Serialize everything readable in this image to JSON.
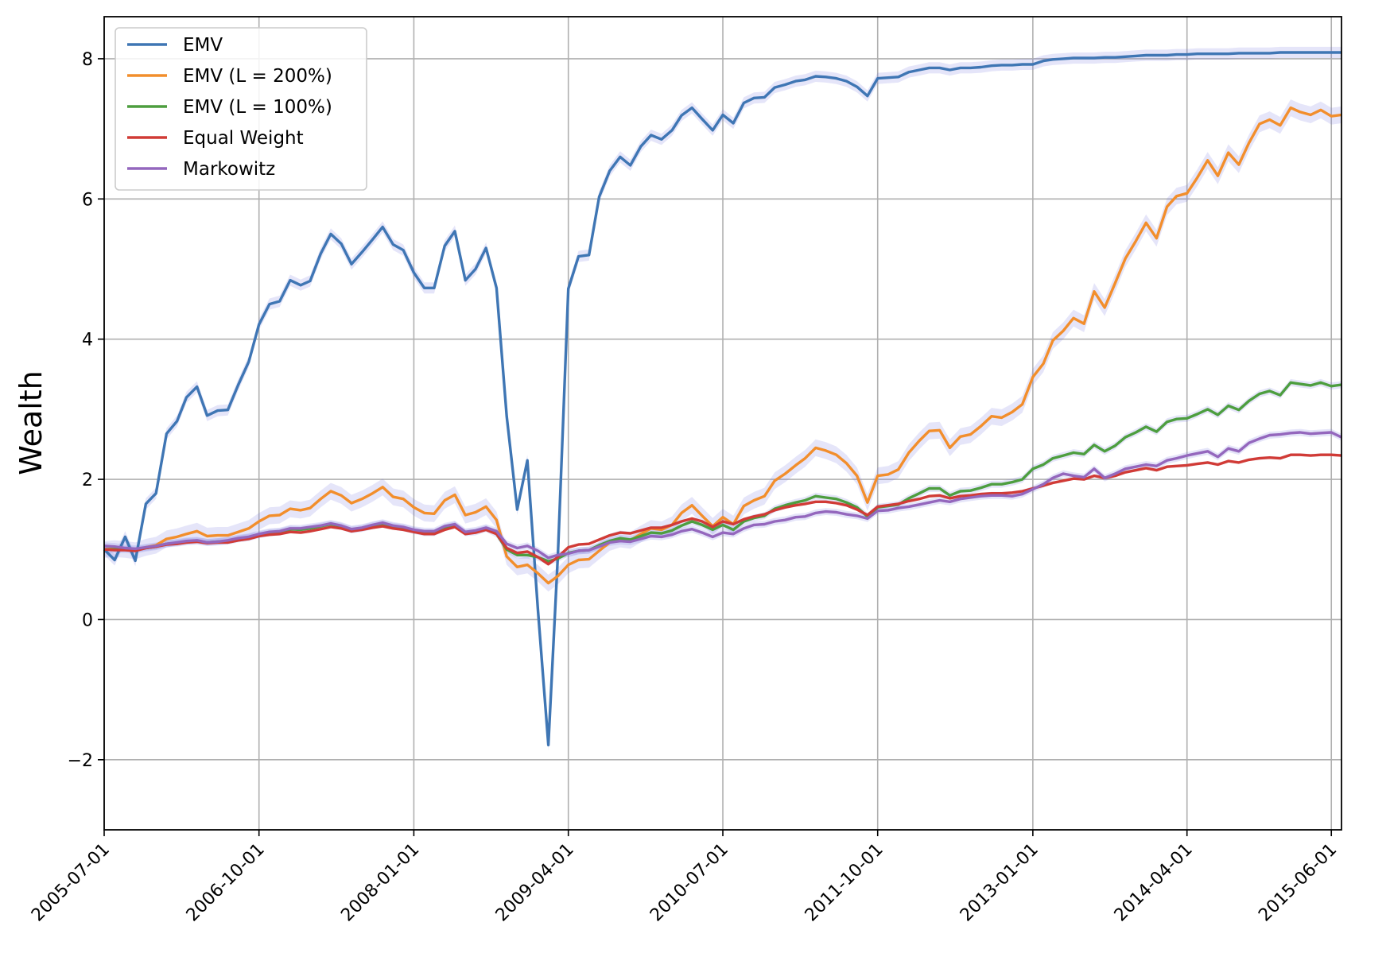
{
  "chart_data": {
    "type": "line",
    "title": "",
    "xlabel": "",
    "ylabel": "Wealth",
    "ylim": [
      -3,
      8.6
    ],
    "yticks": [
      -2,
      0,
      2,
      4,
      6,
      8
    ],
    "ytick_labels": [
      "−2",
      "0",
      "2",
      "4",
      "6",
      "8"
    ],
    "xlim": [
      "2005-07-01",
      "2015-07-01"
    ],
    "xticks": [
      "2005-07-01",
      "2006-10-01",
      "2008-01-01",
      "2009-04-01",
      "2010-07-01",
      "2011-10-01",
      "2013-01-01",
      "2014-04-01",
      "2015-06-01"
    ],
    "grid": true,
    "legend_position": "top-left",
    "x": [
      "2005-07",
      "2005-08",
      "2005-09",
      "2005-10",
      "2005-11",
      "2005-12",
      "2006-01",
      "2006-02",
      "2006-03",
      "2006-04",
      "2006-05",
      "2006-06",
      "2006-07",
      "2006-08",
      "2006-09",
      "2006-10",
      "2006-11",
      "2006-12",
      "2007-01",
      "2007-02",
      "2007-03",
      "2007-04",
      "2007-05",
      "2007-06",
      "2007-07",
      "2007-08",
      "2007-09",
      "2007-10",
      "2007-11",
      "2007-12",
      "2008-01",
      "2008-02",
      "2008-03",
      "2008-04",
      "2008-05",
      "2008-06",
      "2008-07",
      "2008-08",
      "2008-09",
      "2008-10",
      "2008-11",
      "2008-12",
      "2009-01",
      "2009-02",
      "2009-03",
      "2009-04",
      "2009-05",
      "2009-06",
      "2009-07",
      "2009-08",
      "2009-09",
      "2009-10",
      "2009-11",
      "2009-12",
      "2010-01",
      "2010-02",
      "2010-03",
      "2010-04",
      "2010-05",
      "2010-06",
      "2010-07",
      "2010-08",
      "2010-09",
      "2010-10",
      "2010-11",
      "2010-12",
      "2011-01",
      "2011-02",
      "2011-03",
      "2011-04",
      "2011-05",
      "2011-06",
      "2011-07",
      "2011-08",
      "2011-09",
      "2011-10",
      "2011-11",
      "2011-12",
      "2012-01",
      "2012-02",
      "2012-03",
      "2012-04",
      "2012-05",
      "2012-06",
      "2012-07",
      "2012-08",
      "2012-09",
      "2012-10",
      "2012-11",
      "2012-12",
      "2013-01",
      "2013-02",
      "2013-03",
      "2013-04",
      "2013-05",
      "2013-06",
      "2013-07",
      "2013-08",
      "2013-09",
      "2013-10",
      "2013-11",
      "2013-12",
      "2014-01",
      "2014-02",
      "2014-03",
      "2014-04",
      "2014-05",
      "2014-06",
      "2014-07",
      "2014-08",
      "2014-09",
      "2014-10",
      "2014-11",
      "2014-12",
      "2015-01",
      "2015-02",
      "2015-03",
      "2015-04",
      "2015-05",
      "2015-06",
      "2015-07"
    ],
    "series": [
      {
        "name": "EMV",
        "color": "#3f76b4",
        "band": 0.08,
        "values": [
          1.0,
          0.85,
          1.18,
          0.84,
          1.65,
          1.8,
          2.65,
          2.83,
          3.17,
          3.32,
          2.91,
          2.98,
          2.99,
          3.35,
          3.68,
          4.21,
          4.5,
          4.54,
          4.84,
          4.77,
          4.83,
          5.22,
          5.5,
          5.36,
          5.07,
          5.24,
          5.42,
          5.6,
          5.35,
          5.27,
          4.95,
          4.73,
          4.73,
          5.33,
          5.54,
          4.84,
          5.0,
          5.3,
          4.73,
          2.9,
          1.57,
          2.27,
          0.15,
          -1.79,
          0.9,
          4.72,
          5.18,
          5.2,
          6.03,
          6.4,
          6.6,
          6.48,
          6.75,
          6.91,
          6.85,
          6.98,
          7.19,
          7.3,
          7.14,
          6.98,
          7.2,
          7.08,
          7.37,
          7.44,
          7.45,
          7.59,
          7.63,
          7.68,
          7.7,
          7.75,
          7.74,
          7.72,
          7.68,
          7.6,
          7.47,
          7.72,
          7.73,
          7.74,
          7.81,
          7.84,
          7.87,
          7.87,
          7.84,
          7.87,
          7.87,
          7.88,
          7.9,
          7.91,
          7.91,
          7.92,
          7.92,
          7.97,
          7.99,
          8.0,
          8.01,
          8.01,
          8.01,
          8.02,
          8.02,
          8.03,
          8.04,
          8.05,
          8.05,
          8.05,
          8.06,
          8.06,
          8.07,
          8.07,
          8.07,
          8.07,
          8.08,
          8.08,
          8.08,
          8.08,
          8.09,
          8.09,
          8.09,
          8.09,
          8.09,
          8.09,
          8.09
        ]
      },
      {
        "name": "EMV (L = 200%)",
        "color": "#f28e2c",
        "band": 0.12,
        "values": [
          1.0,
          1.01,
          1.0,
          0.98,
          1.03,
          1.06,
          1.15,
          1.18,
          1.22,
          1.26,
          1.19,
          1.2,
          1.2,
          1.25,
          1.3,
          1.4,
          1.48,
          1.49,
          1.58,
          1.56,
          1.59,
          1.72,
          1.83,
          1.77,
          1.66,
          1.72,
          1.8,
          1.89,
          1.75,
          1.72,
          1.6,
          1.52,
          1.51,
          1.7,
          1.78,
          1.49,
          1.53,
          1.61,
          1.42,
          0.9,
          0.75,
          0.78,
          0.66,
          0.52,
          0.62,
          0.78,
          0.85,
          0.86,
          0.98,
          1.1,
          1.15,
          1.13,
          1.22,
          1.3,
          1.28,
          1.35,
          1.52,
          1.63,
          1.48,
          1.33,
          1.46,
          1.36,
          1.62,
          1.7,
          1.76,
          1.98,
          2.08,
          2.2,
          2.3,
          2.45,
          2.41,
          2.35,
          2.23,
          2.05,
          1.67,
          2.05,
          2.07,
          2.14,
          2.38,
          2.55,
          2.69,
          2.7,
          2.45,
          2.61,
          2.64,
          2.76,
          2.9,
          2.88,
          2.96,
          3.07,
          3.46,
          3.65,
          3.98,
          4.12,
          4.3,
          4.22,
          4.68,
          4.45,
          4.8,
          5.15,
          5.4,
          5.66,
          5.44,
          5.89,
          6.04,
          6.08,
          6.3,
          6.55,
          6.33,
          6.66,
          6.49,
          6.8,
          7.07,
          7.13,
          7.05,
          7.3,
          7.24,
          7.2,
          7.27,
          7.18,
          7.2
        ]
      },
      {
        "name": "EMV (L = 100%)",
        "color": "#4d9e3f",
        "band": 0.05,
        "values": [
          1.0,
          1.0,
          1.0,
          0.99,
          1.02,
          1.04,
          1.08,
          1.09,
          1.11,
          1.12,
          1.1,
          1.11,
          1.12,
          1.15,
          1.17,
          1.21,
          1.24,
          1.25,
          1.29,
          1.28,
          1.3,
          1.33,
          1.36,
          1.33,
          1.28,
          1.3,
          1.34,
          1.37,
          1.33,
          1.31,
          1.27,
          1.24,
          1.24,
          1.31,
          1.35,
          1.24,
          1.25,
          1.3,
          1.22,
          1.0,
          0.92,
          0.92,
          0.89,
          0.83,
          0.87,
          0.95,
          0.98,
          0.99,
          1.06,
          1.12,
          1.16,
          1.14,
          1.19,
          1.24,
          1.23,
          1.27,
          1.34,
          1.4,
          1.35,
          1.28,
          1.35,
          1.28,
          1.4,
          1.45,
          1.48,
          1.58,
          1.63,
          1.67,
          1.7,
          1.76,
          1.74,
          1.72,
          1.67,
          1.6,
          1.47,
          1.6,
          1.62,
          1.64,
          1.73,
          1.8,
          1.87,
          1.87,
          1.77,
          1.83,
          1.84,
          1.88,
          1.93,
          1.93,
          1.96,
          2.0,
          2.15,
          2.21,
          2.3,
          2.34,
          2.38,
          2.36,
          2.49,
          2.4,
          2.48,
          2.6,
          2.67,
          2.75,
          2.68,
          2.82,
          2.86,
          2.87,
          2.93,
          3.0,
          2.92,
          3.05,
          2.99,
          3.12,
          3.22,
          3.26,
          3.2,
          3.38,
          3.36,
          3.34,
          3.38,
          3.33,
          3.35
        ]
      },
      {
        "name": "Equal Weight",
        "color": "#d13b36",
        "band": 0.02,
        "values": [
          1.0,
          0.99,
          0.99,
          0.98,
          1.02,
          1.04,
          1.07,
          1.08,
          1.1,
          1.11,
          1.09,
          1.1,
          1.1,
          1.13,
          1.15,
          1.19,
          1.21,
          1.22,
          1.25,
          1.24,
          1.26,
          1.29,
          1.32,
          1.3,
          1.26,
          1.28,
          1.31,
          1.33,
          1.3,
          1.28,
          1.25,
          1.22,
          1.22,
          1.28,
          1.32,
          1.22,
          1.24,
          1.28,
          1.22,
          1.02,
          0.95,
          0.97,
          0.89,
          0.79,
          0.89,
          1.03,
          1.07,
          1.08,
          1.14,
          1.2,
          1.24,
          1.23,
          1.27,
          1.31,
          1.31,
          1.35,
          1.4,
          1.44,
          1.4,
          1.32,
          1.4,
          1.36,
          1.43,
          1.47,
          1.5,
          1.56,
          1.6,
          1.63,
          1.65,
          1.68,
          1.68,
          1.66,
          1.63,
          1.57,
          1.49,
          1.61,
          1.63,
          1.65,
          1.69,
          1.72,
          1.76,
          1.77,
          1.73,
          1.76,
          1.77,
          1.79,
          1.8,
          1.8,
          1.81,
          1.83,
          1.87,
          1.91,
          1.95,
          1.98,
          2.01,
          2.0,
          2.05,
          2.02,
          2.05,
          2.1,
          2.13,
          2.16,
          2.13,
          2.18,
          2.19,
          2.2,
          2.22,
          2.24,
          2.21,
          2.26,
          2.24,
          2.28,
          2.3,
          2.31,
          2.3,
          2.35,
          2.35,
          2.34,
          2.35,
          2.35,
          2.34
        ]
      },
      {
        "name": "Markowitz",
        "color": "#9467bd",
        "band": 0.05,
        "values": [
          1.05,
          1.04,
          1.02,
          1.01,
          1.03,
          1.05,
          1.08,
          1.1,
          1.12,
          1.13,
          1.1,
          1.11,
          1.13,
          1.16,
          1.18,
          1.22,
          1.25,
          1.26,
          1.3,
          1.3,
          1.32,
          1.34,
          1.37,
          1.34,
          1.29,
          1.31,
          1.35,
          1.38,
          1.34,
          1.32,
          1.28,
          1.26,
          1.26,
          1.33,
          1.36,
          1.25,
          1.27,
          1.31,
          1.26,
          1.08,
          1.02,
          1.05,
          0.98,
          0.88,
          0.92,
          0.94,
          0.98,
          0.99,
          1.04,
          1.1,
          1.12,
          1.11,
          1.15,
          1.19,
          1.18,
          1.21,
          1.26,
          1.29,
          1.24,
          1.18,
          1.24,
          1.22,
          1.3,
          1.35,
          1.36,
          1.4,
          1.42,
          1.46,
          1.47,
          1.52,
          1.54,
          1.53,
          1.5,
          1.48,
          1.44,
          1.55,
          1.56,
          1.59,
          1.61,
          1.64,
          1.67,
          1.7,
          1.68,
          1.72,
          1.74,
          1.76,
          1.77,
          1.77,
          1.76,
          1.79,
          1.86,
          1.93,
          2.02,
          2.08,
          2.05,
          2.03,
          2.15,
          2.02,
          2.08,
          2.15,
          2.18,
          2.21,
          2.19,
          2.27,
          2.3,
          2.34,
          2.37,
          2.4,
          2.32,
          2.44,
          2.4,
          2.52,
          2.58,
          2.63,
          2.64,
          2.66,
          2.67,
          2.65,
          2.66,
          2.67,
          2.6
        ]
      }
    ]
  }
}
